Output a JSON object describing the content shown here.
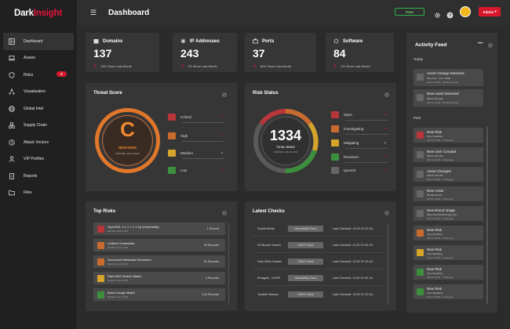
{
  "brand": {
    "part1": "Dark",
    "part2": "Insight"
  },
  "sidebar": {
    "items": [
      {
        "label": "Dashboard",
        "icon": "dashboard-icon"
      },
      {
        "label": "Assets",
        "icon": "laptop-icon"
      },
      {
        "label": "Risks",
        "icon": "shield-icon",
        "badge": "3"
      },
      {
        "label": "Visualisation",
        "icon": "network-icon"
      },
      {
        "label": "Global Intel",
        "icon": "globe-icon"
      },
      {
        "label": "Supply Chain",
        "icon": "supply-chain-icon"
      },
      {
        "label": "Attack Vectors",
        "icon": "attack-icon"
      },
      {
        "label": "VIP Profiles",
        "icon": "user-icon"
      },
      {
        "label": "Reports",
        "icon": "report-icon"
      },
      {
        "label": "Files",
        "icon": "folder-icon"
      }
    ]
  },
  "header": {
    "title": "Dashboard",
    "plan": "Free",
    "admin": "Admin"
  },
  "stats": [
    {
      "title": "Domains",
      "value": "137",
      "change": "14% Since Last Month",
      "icon": "domain-icon"
    },
    {
      "title": "IP Addresses",
      "value": "243",
      "change": "7% Since Last Month",
      "icon": "ip-icon"
    },
    {
      "title": "Ports",
      "value": "37",
      "change": "18% Since Last Month",
      "icon": "port-icon"
    },
    {
      "title": "Software",
      "value": "84",
      "change": "1% Since Last Month",
      "icon": "software-icon"
    }
  ],
  "threat": {
    "title": "Threat Score",
    "grade": "C",
    "label": "HIGH RISK",
    "updated": "UPDATED: JAN 21 2024",
    "legend": [
      {
        "label": "Critical",
        "color": "#b8353a",
        "level": "1"
      },
      {
        "label": "High",
        "color": "#c96a2e",
        "level": "1"
      },
      {
        "label": "Medium",
        "color": "#d6a42b",
        "level": "4"
      },
      {
        "label": "Low",
        "color": "#3d8f3d",
        "level": "1"
      }
    ]
  },
  "risk": {
    "title": "Risk Status",
    "total": "1334",
    "total_label": "TOTAL RISKS",
    "updated": "UPDATED: JAN 21 2024",
    "legend": [
      {
        "label": "Open",
        "color": "#b8353a",
        "level": "1"
      },
      {
        "label": "Investigating",
        "color": "#c96a2e",
        "level": "1"
      },
      {
        "label": "Mitigating",
        "color": "#d6a42b",
        "level": "1"
      },
      {
        "label": "Resolved",
        "color": "#3d8f3d",
        "level": "1"
      },
      {
        "label": "Ignored",
        "color": "#666",
        "level": "1"
      }
    ]
  },
  "top_risks": {
    "title": "Top Risks",
    "rows": [
      {
        "name": "OpenSSL 1.1.1 < 1.1.1g Vulnerability",
        "date": "Identified: Jan 21, 2024",
        "count": "1 Record",
        "color": "#b8353a",
        "icon": "vulnerability-icon"
      },
      {
        "name": "Leaked Credentials",
        "date": "Identified: Jan 21, 2024",
        "count": "39 Records",
        "color": "#c96a2e",
        "icon": "key-icon"
      },
      {
        "name": "Document Metadata Disclosure",
        "date": "Identified: Jan 21, 2024",
        "count": "21 Records",
        "color": "#c96a2e",
        "icon": "search-icon"
      },
      {
        "name": "Dark Web Search Match",
        "date": "Identified: Jan 21, 2024",
        "count": "4 Records",
        "color": "#d6a42b",
        "icon": "search-icon"
      },
      {
        "name": "Brand Image Match",
        "date": "Identified: Jan 21, 2024",
        "count": "144 Records",
        "color": "#3d8f3d",
        "icon": "image-icon"
      }
    ]
  },
  "latest_checks": {
    "title": "Latest Checks",
    "rows": [
      {
        "name": "Social Media",
        "button": "Vulnerability Check",
        "date": "Last Checked: 14:02 07-02-24"
      },
      {
        "name": "S3 Bucket Search",
        "button": "OSINT Check",
        "date": "Last Checked: 11:02 07-02-24"
      },
      {
        "name": "Dark Web Crawler",
        "button": "OSINT Check",
        "date": "Last Checked: 10:02 07-02-24"
      },
      {
        "name": "Emagnis - VCNR",
        "button": "Vulnerability Check",
        "date": "Last Checked: 11:02 07-02-24"
      },
      {
        "name": "Tonable Nessus",
        "button": "OSINT Check",
        "date": "Last Checked: 13:02 07-02-24"
      }
    ]
  },
  "activity": {
    "title": "Activity Feed",
    "today_label": "Today",
    "past_label": "Past",
    "today": [
      {
        "title": "Asset Change Detected",
        "sub": "New Port - TCP - 8080",
        "time": "Jan 21 14:02 - 38 Minutes Ago"
      },
      {
        "title": "New Asset Detected",
        "sub": "208.67.222.222",
        "time": "Jan 21 14:02 - 39 Minutes Ago"
      }
    ],
    "past": [
      {
        "title": "New Risk",
        "sub": "Typo Squatting",
        "time": "Jan 21 14:02 - 1 Day ago",
        "color": "#b8353a",
        "icon": "warning-icon"
      },
      {
        "title": "New User Created",
        "sub": "208.67.222.222",
        "time": "Jan 21 14:02 - 1 Day ago",
        "color": "#666",
        "icon": "user-icon"
      },
      {
        "title": "Asset Changed",
        "sub": "208.67.222.222",
        "time": "Jan 21 14:02 - 1 Day ago",
        "color": "#666",
        "icon": "pulse-icon"
      },
      {
        "title": "New Asset",
        "sub": "98.150.144.10",
        "time": "Jan 21 14:02 - 1 Day ago",
        "color": "#666",
        "icon": "pulse-icon"
      },
      {
        "title": "New Brand Image",
        "sub": "https://websitethisimage.png",
        "time": "Jan 21 14:02 - 1 Day ago",
        "color": "#666",
        "icon": "pulse-icon"
      },
      {
        "title": "New Risk",
        "sub": "Typo Squatting",
        "time": "Jan 21 14:02 - 1 Day ago",
        "color": "#c96a2e",
        "icon": "warning-icon"
      },
      {
        "title": "New Risk",
        "sub": "Typo Squatting",
        "time": "Jan 21 14:02 - 1 Day ago",
        "color": "#d6a42b",
        "icon": "warning-icon"
      },
      {
        "title": "New Risk",
        "sub": "Typo Squatting",
        "time": "Jan 21 14:02 - 1 Day ago",
        "color": "#3d8f3d",
        "icon": "warning-icon"
      },
      {
        "title": "New Risk",
        "sub": "Typo Squatting",
        "time": "Jan 21 14:02 - 1 Day ago",
        "color": "#3d8f3d",
        "icon": "warning-icon"
      }
    ]
  }
}
